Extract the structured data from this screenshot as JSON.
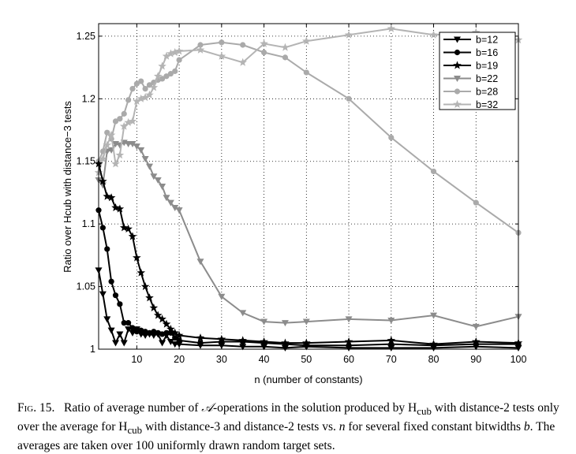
{
  "chart_data": {
    "type": "line",
    "xlabel": "n (number of constants)",
    "ylabel": "Ratio over Hcub with distance−3 tests",
    "xlim": [
      1,
      100
    ],
    "ylim": [
      1,
      1.26
    ],
    "xticks": [
      10,
      20,
      30,
      40,
      50,
      60,
      70,
      80,
      90,
      100
    ],
    "xtick_labels": [
      "10",
      "20",
      "30",
      "40",
      "50",
      "60",
      "70",
      "80",
      "90",
      "100"
    ],
    "yticks": [
      1,
      1.05,
      1.1,
      1.15,
      1.2,
      1.25
    ],
    "ytick_labels": [
      "1",
      "1.05",
      "1.1",
      "1.15",
      "1.2",
      "1.25"
    ],
    "grid": true,
    "legend_position": "top-right",
    "series": [
      {
        "name": "b=12",
        "color": "#000000",
        "marker": "triangle-down",
        "x": [
          1,
          2,
          3,
          4,
          5,
          6,
          7,
          8,
          9,
          10,
          11,
          12,
          13,
          14,
          15,
          16,
          17,
          18,
          19,
          20,
          25,
          30,
          35,
          40,
          45,
          50,
          60,
          70,
          80,
          90,
          100
        ],
        "y": [
          1.063,
          1.044,
          1.024,
          1.015,
          1.005,
          1.012,
          1.005,
          1.016,
          1.013,
          1.016,
          1.012,
          1.011,
          1.012,
          1.011,
          1.012,
          1.005,
          1.011,
          1.006,
          1.004,
          1.004,
          1.003,
          1.003,
          1.002,
          1.002,
          1.001,
          1.002,
          1.001,
          1.001,
          1.001,
          1.002,
          1.001
        ]
      },
      {
        "name": "b=16",
        "color": "#000000",
        "marker": "circle",
        "x": [
          1,
          2,
          3,
          4,
          5,
          6,
          7,
          8,
          9,
          10,
          11,
          12,
          13,
          14,
          15,
          16,
          17,
          18,
          19,
          20,
          25,
          30,
          35,
          40,
          45,
          50,
          60,
          70,
          80,
          90,
          100
        ],
        "y": [
          1.111,
          1.097,
          1.08,
          1.054,
          1.043,
          1.036,
          1.021,
          1.021,
          1.017,
          1.014,
          1.015,
          1.014,
          1.013,
          1.014,
          1.013,
          1.012,
          1.013,
          1.013,
          1.009,
          1.007,
          1.005,
          1.006,
          1.006,
          1.005,
          1.004,
          1.003,
          1.003,
          1.004,
          1.003,
          1.004,
          1.004
        ]
      },
      {
        "name": "b=19",
        "color": "#000000",
        "marker": "star",
        "x": [
          1,
          2,
          3,
          4,
          5,
          6,
          7,
          8,
          9,
          10,
          11,
          12,
          13,
          14,
          15,
          16,
          17,
          18,
          19,
          20,
          25,
          30,
          35,
          40,
          45,
          50,
          60,
          70,
          80,
          90,
          100
        ],
        "y": [
          1.148,
          1.134,
          1.122,
          1.121,
          1.113,
          1.112,
          1.097,
          1.096,
          1.09,
          1.073,
          1.061,
          1.05,
          1.041,
          1.033,
          1.027,
          1.024,
          1.02,
          1.016,
          1.013,
          1.011,
          1.009,
          1.008,
          1.007,
          1.006,
          1.005,
          1.005,
          1.006,
          1.007,
          1.004,
          1.006,
          1.005
        ]
      },
      {
        "name": "b=22",
        "color": "#8c8c8c",
        "marker": "triangle-down",
        "x": [
          1,
          2,
          3,
          4,
          5,
          6,
          7,
          8,
          9,
          10,
          11,
          12,
          13,
          14,
          15,
          16,
          17,
          18,
          19,
          20,
          25,
          30,
          35,
          40,
          45,
          50,
          60,
          70,
          80,
          90,
          100
        ],
        "y": [
          1.135,
          1.131,
          1.158,
          1.159,
          1.164,
          1.163,
          1.165,
          1.164,
          1.164,
          1.162,
          1.159,
          1.152,
          1.146,
          1.138,
          1.135,
          1.13,
          1.121,
          1.117,
          1.113,
          1.111,
          1.07,
          1.042,
          1.029,
          1.022,
          1.021,
          1.022,
          1.024,
          1.023,
          1.027,
          1.018,
          1.026
        ]
      },
      {
        "name": "b=28",
        "color": "#aaaaaa",
        "marker": "circle",
        "x": [
          1,
          2,
          3,
          4,
          5,
          6,
          7,
          8,
          9,
          10,
          11,
          12,
          13,
          14,
          15,
          16,
          17,
          18,
          19,
          20,
          25,
          30,
          35,
          40,
          45,
          50,
          60,
          70,
          80,
          90,
          100
        ],
        "y": [
          1.15,
          1.158,
          1.173,
          1.168,
          1.182,
          1.184,
          1.188,
          1.199,
          1.208,
          1.212,
          1.214,
          1.208,
          1.211,
          1.213,
          1.215,
          1.216,
          1.218,
          1.22,
          1.222,
          1.231,
          1.243,
          1.245,
          1.243,
          1.237,
          1.233,
          1.221,
          1.2,
          1.169,
          1.142,
          1.117,
          1.093
        ]
      },
      {
        "name": "b=32",
        "color": "#b4b4b4",
        "marker": "star",
        "x": [
          1,
          2,
          3,
          4,
          5,
          6,
          7,
          8,
          9,
          10,
          11,
          12,
          13,
          14,
          15,
          16,
          17,
          18,
          19,
          20,
          25,
          30,
          35,
          40,
          45,
          50,
          60,
          70,
          80,
          90,
          100
        ],
        "y": [
          1.141,
          1.152,
          1.163,
          1.171,
          1.148,
          1.155,
          1.178,
          1.181,
          1.182,
          1.198,
          1.2,
          1.201,
          1.203,
          1.209,
          1.218,
          1.226,
          1.234,
          1.236,
          1.237,
          1.238,
          1.239,
          1.234,
          1.229,
          1.244,
          1.241,
          1.246,
          1.251,
          1.256,
          1.251,
          1.253,
          1.247
        ]
      }
    ]
  },
  "caption": {
    "label": "Fig. 15.",
    "p1": "Ratio of average number of ",
    "a_symbol": "𝒜",
    "p2": "-operations in the solution produced by H",
    "sub_cub": "cub",
    "p3": " with distance-2 tests only over the average for H",
    "sub_cub_2": "cub",
    "p4": " with distance-3 and distance-2 tests vs. ",
    "n_symbol": "n",
    "p5": " for several fixed constant bitwidths ",
    "b_symbol": "b",
    "p6": ". The averages are taken over 100 uniformly drawn random target sets."
  }
}
